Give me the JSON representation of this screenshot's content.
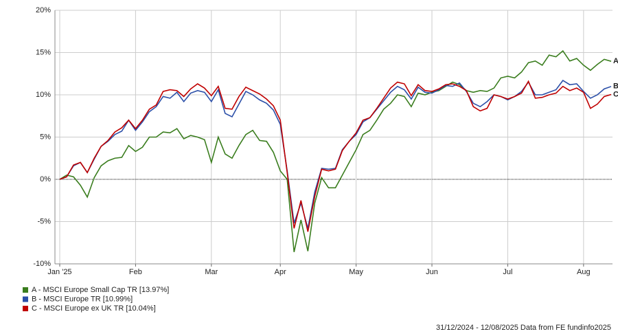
{
  "chart_data": {
    "type": "line",
    "categories": [
      "Jan '25",
      null,
      null,
      null,
      null,
      null,
      null,
      null,
      null,
      null,
      null,
      "Feb",
      null,
      null,
      null,
      null,
      null,
      null,
      null,
      null,
      null,
      null,
      "Mar",
      null,
      null,
      null,
      null,
      null,
      null,
      null,
      null,
      null,
      "Apr",
      null,
      null,
      null,
      null,
      null,
      null,
      null,
      null,
      null,
      null,
      "May",
      null,
      null,
      null,
      null,
      null,
      null,
      null,
      null,
      null,
      null,
      "Jun",
      null,
      null,
      null,
      null,
      null,
      null,
      null,
      null,
      null,
      null,
      "Jul",
      null,
      null,
      null,
      null,
      null,
      null,
      null,
      null,
      null,
      null,
      "Aug",
      null,
      null,
      null,
      null
    ],
    "series": [
      {
        "name": "A - MSCI Europe Small Cap TR [13.97%]",
        "label": "A",
        "color": "#3a7d1e",
        "values": [
          0,
          0.5,
          0.3,
          -0.7,
          -2.1,
          0.2,
          1.6,
          2.2,
          2.5,
          2.6,
          4.0,
          3.3,
          3.8,
          5.0,
          5.0,
          5.6,
          5.5,
          6.0,
          4.8,
          5.2,
          5.0,
          4.7,
          2.0,
          5.0,
          3.0,
          2.5,
          4.0,
          5.3,
          5.8,
          4.6,
          4.5,
          3.2,
          1.0,
          0.0,
          -8.6,
          -4.8,
          -8.5,
          -2.8,
          0.2,
          -1.0,
          -1.0,
          0.5,
          2.0,
          3.5,
          5.3,
          5.8,
          7.0,
          8.3,
          9.0,
          10.0,
          9.8,
          8.6,
          10.2,
          10.0,
          10.3,
          10.5,
          11.0,
          11.5,
          11.2,
          10.5,
          10.3,
          10.5,
          10.4,
          10.8,
          12.0,
          12.2,
          12.0,
          12.7,
          13.8,
          14.0,
          13.5,
          14.7,
          14.5,
          15.2,
          14.0,
          14.3,
          13.5,
          12.9,
          13.6,
          14.2,
          13.97
        ]
      },
      {
        "name": "B - MSCI Europe TR [10.99%]",
        "label": "B",
        "color": "#2b4fa8",
        "values": [
          0,
          0.3,
          1.6,
          2.0,
          0.8,
          2.4,
          3.9,
          4.5,
          5.3,
          5.7,
          7.0,
          5.8,
          6.8,
          8.0,
          8.6,
          9.8,
          9.6,
          10.3,
          9.2,
          10.2,
          10.5,
          10.3,
          9.2,
          10.6,
          7.8,
          7.4,
          8.9,
          10.4,
          10.0,
          9.4,
          9.0,
          8.2,
          6.5,
          1.0,
          -5.2,
          -2.8,
          -5.8,
          -1.5,
          1.3,
          1.2,
          1.3,
          3.5,
          4.5,
          5.3,
          6.8,
          7.3,
          8.3,
          9.3,
          10.3,
          11.0,
          10.6,
          9.5,
          10.9,
          10.3,
          10.2,
          10.6,
          11.1,
          11.0,
          11.4,
          10.4,
          9.0,
          8.6,
          9.2,
          10.0,
          9.8,
          9.4,
          9.8,
          10.4,
          11.5,
          10.0,
          10.0,
          10.3,
          10.6,
          11.7,
          11.2,
          11.3,
          10.4,
          9.6,
          10.0,
          10.7,
          10.99
        ]
      },
      {
        "name": "C - MSCI Europe ex UK TR [10.04%]",
        "label": "C",
        "color": "#c00000",
        "values": [
          0,
          0.3,
          1.7,
          2.0,
          0.8,
          2.5,
          3.9,
          4.6,
          5.6,
          6.1,
          7.0,
          6.0,
          7.0,
          8.3,
          8.8,
          10.4,
          10.6,
          10.5,
          9.8,
          10.7,
          11.3,
          10.8,
          9.9,
          11.0,
          8.4,
          8.3,
          9.8,
          10.9,
          10.5,
          10.1,
          9.5,
          8.7,
          7.0,
          0.8,
          -5.8,
          -2.5,
          -6.2,
          -2.0,
          1.2,
          1.0,
          1.2,
          3.4,
          4.5,
          5.5,
          7.0,
          7.3,
          8.4,
          9.6,
          10.8,
          11.5,
          11.3,
          9.9,
          11.2,
          10.5,
          10.4,
          10.7,
          11.2,
          11.3,
          11.0,
          10.5,
          8.6,
          8.1,
          8.4,
          10.0,
          9.8,
          9.5,
          9.8,
          10.2,
          11.6,
          9.6,
          9.7,
          10.0,
          10.2,
          11.0,
          10.5,
          10.8,
          10.3,
          8.4,
          8.9,
          9.8,
          10.04
        ]
      }
    ],
    "ylim": [
      -10,
      20
    ],
    "yticks": [
      {
        "value": -10,
        "label": "-10%"
      },
      {
        "value": -5,
        "label": "-5%"
      },
      {
        "value": 0,
        "label": "0%"
      },
      {
        "value": 5,
        "label": "5%"
      },
      {
        "value": 10,
        "label": "10%"
      },
      {
        "value": 15,
        "label": "15%"
      },
      {
        "value": 20,
        "label": "20%"
      }
    ],
    "grid": true,
    "footer": "31/12/2024 - 12/08/2025 Data from FE fundinfo2025"
  }
}
